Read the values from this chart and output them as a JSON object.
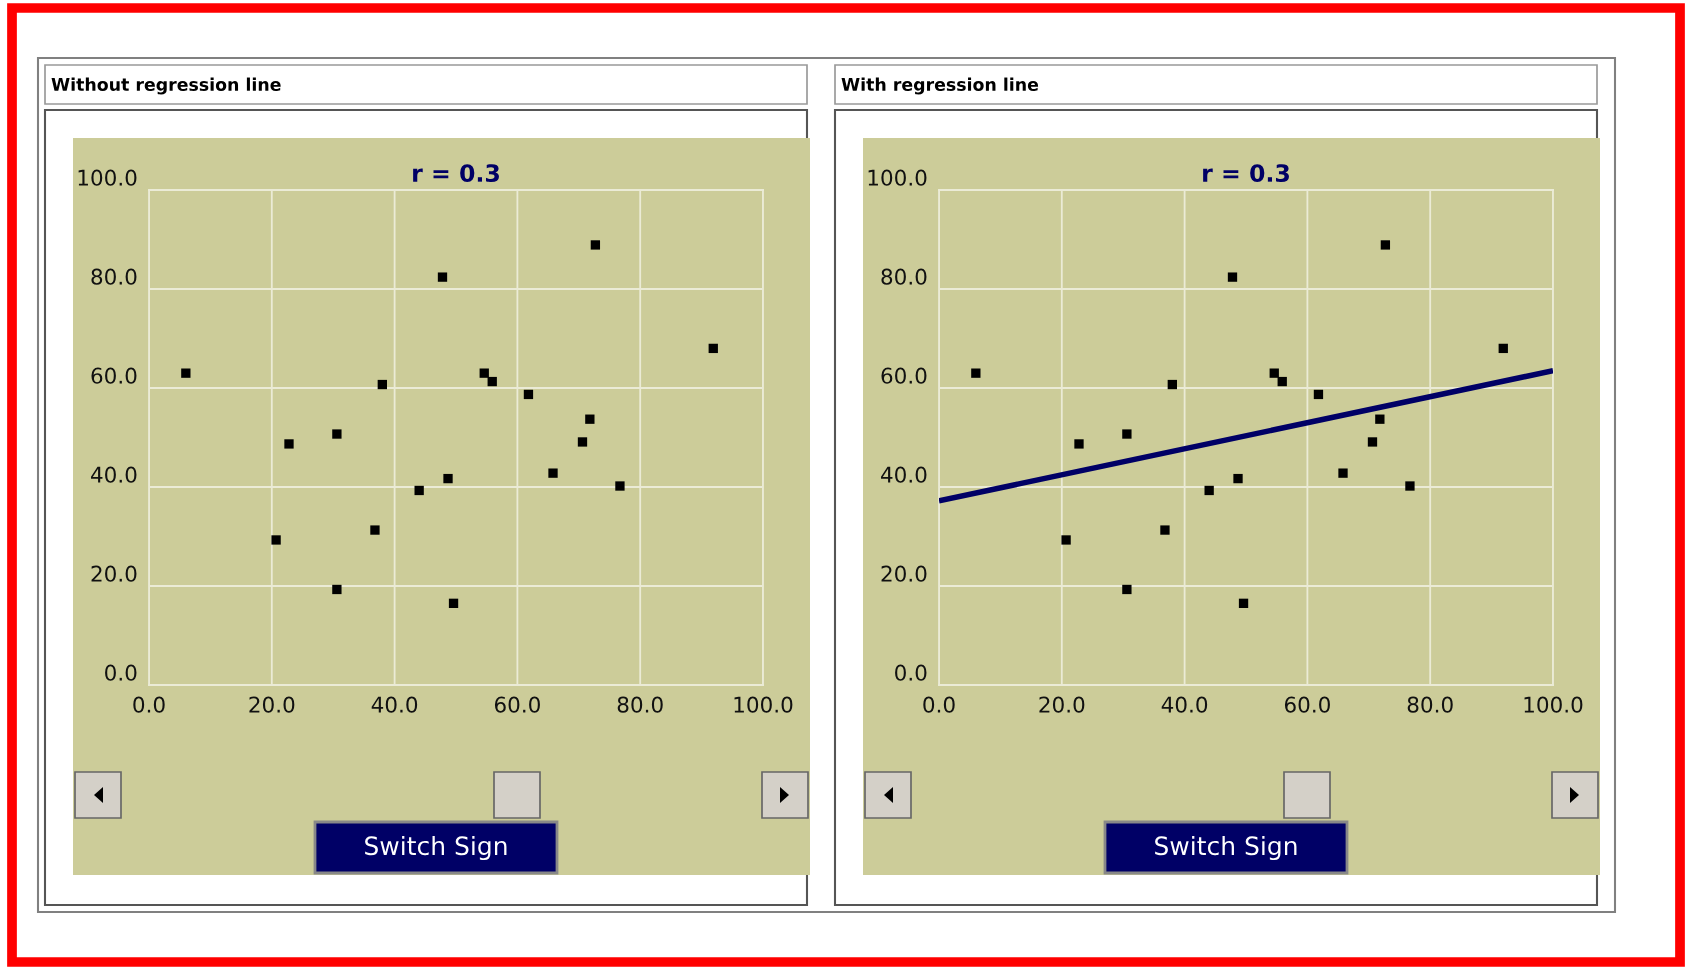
{
  "chart_data": [
    {
      "type": "scatter",
      "title": "Without regression line",
      "subtitle": "r = 0.3",
      "annotations": [
        "Switch Sign"
      ],
      "marker": "square",
      "grid": true,
      "xlim": [
        0,
        100
      ],
      "ylim": [
        0,
        100
      ],
      "xticks": [
        {
          "value": 0,
          "label": "0.0"
        },
        {
          "value": 20,
          "label": "20.0"
        },
        {
          "value": 40,
          "label": "40.0"
        },
        {
          "value": 60,
          "label": "60.0"
        },
        {
          "value": 80,
          "label": "80.0"
        },
        {
          "value": 100,
          "label": "100.0"
        }
      ],
      "yticks": [
        {
          "value": 0,
          "label": "0.0"
        },
        {
          "value": 20,
          "label": "20.0"
        },
        {
          "value": 40,
          "label": "40.0"
        },
        {
          "value": 60,
          "label": "60.0"
        },
        {
          "value": 80,
          "label": "80.0"
        },
        {
          "value": 100,
          "label": "100.0"
        }
      ],
      "x": [
        6.0,
        22.8,
        20.7,
        30.6,
        30.6,
        36.8,
        38.0,
        44.0,
        47.8,
        48.7,
        49.6,
        54.6,
        55.9,
        61.8,
        65.8,
        70.6,
        71.8,
        72.7,
        76.7,
        91.9
      ],
      "series": [
        {
          "color": "#000000",
          "values": [
            63.0,
            48.7,
            29.3,
            50.7,
            19.3,
            31.3,
            60.7,
            39.3,
            82.4,
            41.7,
            16.5,
            63.0,
            61.3,
            58.7,
            42.8,
            49.1,
            53.7,
            88.9,
            40.2,
            68.0
          ]
        }
      ]
    },
    {
      "type": "scatter",
      "title": "With regression line",
      "subtitle": "r = 0.3",
      "annotations": [
        "Switch Sign"
      ],
      "marker": "square",
      "grid": true,
      "xlim": [
        0,
        100
      ],
      "ylim": [
        0,
        100
      ],
      "xticks": [
        {
          "value": 0,
          "label": "0.0"
        },
        {
          "value": 20,
          "label": "20.0"
        },
        {
          "value": 40,
          "label": "40.0"
        },
        {
          "value": 60,
          "label": "60.0"
        },
        {
          "value": 80,
          "label": "80.0"
        },
        {
          "value": 100,
          "label": "100.0"
        }
      ],
      "yticks": [
        {
          "value": 0,
          "label": "0.0"
        },
        {
          "value": 20,
          "label": "20.0"
        },
        {
          "value": 40,
          "label": "40.0"
        },
        {
          "value": 60,
          "label": "60.0"
        },
        {
          "value": 80,
          "label": "80.0"
        },
        {
          "value": 100,
          "label": "100.0"
        }
      ],
      "x": [
        6.0,
        22.8,
        20.7,
        30.6,
        30.6,
        36.8,
        38.0,
        44.0,
        47.8,
        48.7,
        49.6,
        54.6,
        55.9,
        61.8,
        65.8,
        70.6,
        71.8,
        72.7,
        76.7,
        91.9
      ],
      "series": [
        {
          "color": "#000000",
          "values": [
            63.0,
            48.7,
            29.3,
            50.7,
            19.3,
            31.3,
            60.7,
            39.3,
            82.4,
            41.7,
            16.5,
            63.0,
            61.3,
            58.7,
            42.8,
            49.1,
            53.7,
            88.9,
            40.2,
            68.0
          ]
        },
        {
          "type": "line",
          "color": "#000066",
          "marker": "none",
          "x": [
            0,
            100
          ],
          "values": [
            37.2,
            63.5
          ]
        }
      ]
    }
  ]
}
